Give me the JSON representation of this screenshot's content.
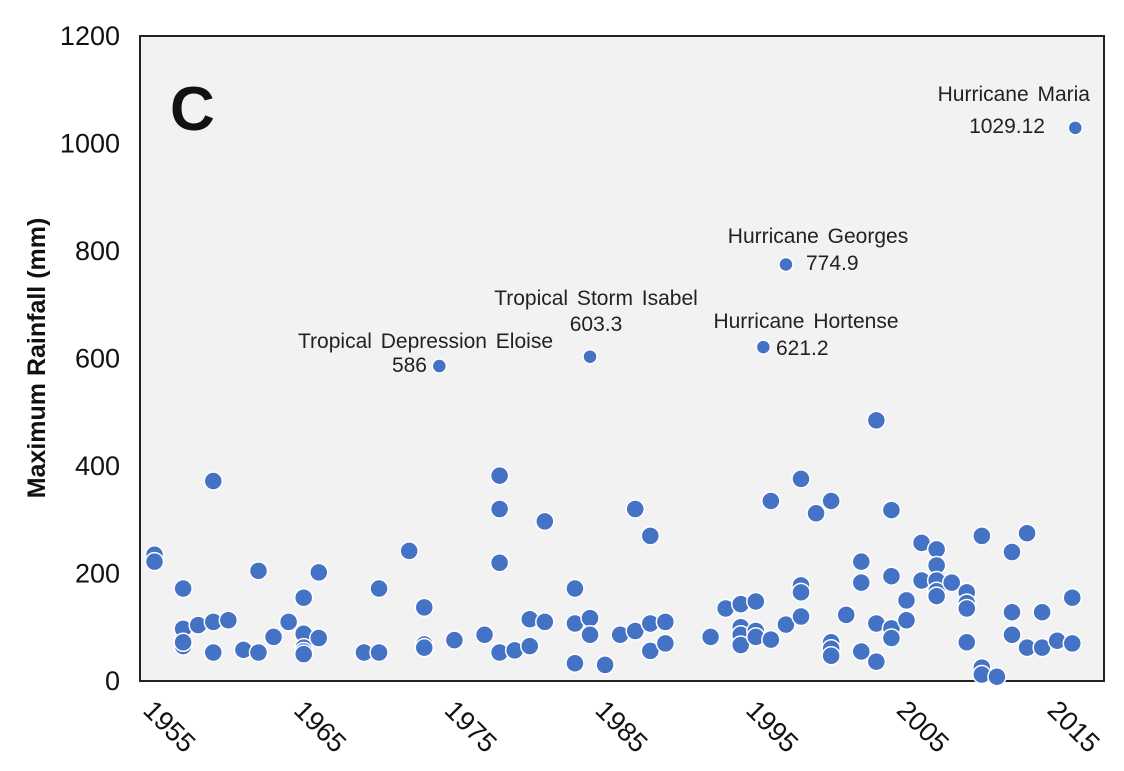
{
  "chart_data": {
    "type": "scatter",
    "title": "",
    "panel_label": "C",
    "xlabel": "",
    "ylabel": "Maximum  Rainfall (mm)",
    "xlim": [
      1954.2,
      2017.8
    ],
    "ylim": [
      0,
      1200
    ],
    "x_ticks": [
      1955,
      1965,
      1975,
      1985,
      1995,
      2005,
      2015
    ],
    "y_ticks": [
      0,
      200,
      400,
      600,
      800,
      1000,
      1200
    ],
    "grid": false,
    "legend": null,
    "series_color": "#4472c4",
    "plot_background": "#f2f2f2",
    "points": [
      {
        "x": 1955.1,
        "y": 235
      },
      {
        "x": 1955.1,
        "y": 222
      },
      {
        "x": 1957,
        "y": 172
      },
      {
        "x": 1957,
        "y": 97
      },
      {
        "x": 1957,
        "y": 65
      },
      {
        "x": 1957,
        "y": 72
      },
      {
        "x": 1958,
        "y": 104
      },
      {
        "x": 1959,
        "y": 110
      },
      {
        "x": 1959,
        "y": 372
      },
      {
        "x": 1959,
        "y": 53
      },
      {
        "x": 1960,
        "y": 113
      },
      {
        "x": 1961,
        "y": 58
      },
      {
        "x": 1962,
        "y": 53
      },
      {
        "x": 1962,
        "y": 205
      },
      {
        "x": 1963,
        "y": 82
      },
      {
        "x": 1964,
        "y": 110
      },
      {
        "x": 1965,
        "y": 155
      },
      {
        "x": 1965,
        "y": 88
      },
      {
        "x": 1965,
        "y": 62
      },
      {
        "x": 1965,
        "y": 55
      },
      {
        "x": 1965,
        "y": 50
      },
      {
        "x": 1966,
        "y": 80
      },
      {
        "x": 1966,
        "y": 202
      },
      {
        "x": 1969,
        "y": 53
      },
      {
        "x": 1970,
        "y": 53
      },
      {
        "x": 1970,
        "y": 172
      },
      {
        "x": 1972,
        "y": 242
      },
      {
        "x": 1973,
        "y": 137
      },
      {
        "x": 1973,
        "y": 68
      },
      {
        "x": 1973,
        "y": 62
      },
      {
        "x": 1974,
        "y": 586,
        "label": "Tropical  Depression  Eloise",
        "value_label": "586"
      },
      {
        "x": 1975,
        "y": 76
      },
      {
        "x": 1977,
        "y": 86
      },
      {
        "x": 1978,
        "y": 382
      },
      {
        "x": 1978,
        "y": 320
      },
      {
        "x": 1978,
        "y": 220
      },
      {
        "x": 1978,
        "y": 53
      },
      {
        "x": 1979,
        "y": 57
      },
      {
        "x": 1980,
        "y": 115
      },
      {
        "x": 1980,
        "y": 65
      },
      {
        "x": 1981,
        "y": 297
      },
      {
        "x": 1981,
        "y": 110
      },
      {
        "x": 1983,
        "y": 172
      },
      {
        "x": 1983,
        "y": 107
      },
      {
        "x": 1983,
        "y": 33
      },
      {
        "x": 1984,
        "y": 603.3,
        "label": "Tropical  Storm Isabel",
        "value_label": "603.3"
      },
      {
        "x": 1984,
        "y": 117
      },
      {
        "x": 1984,
        "y": 86
      },
      {
        "x": 1985,
        "y": 30
      },
      {
        "x": 1986,
        "y": 86
      },
      {
        "x": 1987,
        "y": 320
      },
      {
        "x": 1987,
        "y": 93
      },
      {
        "x": 1988,
        "y": 270
      },
      {
        "x": 1988,
        "y": 107
      },
      {
        "x": 1988,
        "y": 56
      },
      {
        "x": 1989,
        "y": 110
      },
      {
        "x": 1989,
        "y": 70
      },
      {
        "x": 1992,
        "y": 82
      },
      {
        "x": 1993,
        "y": 135
      },
      {
        "x": 1994,
        "y": 143
      },
      {
        "x": 1994,
        "y": 100
      },
      {
        "x": 1994,
        "y": 86
      },
      {
        "x": 1994,
        "y": 67
      },
      {
        "x": 1995,
        "y": 148
      },
      {
        "x": 1995,
        "y": 93
      },
      {
        "x": 1995,
        "y": 82
      },
      {
        "x": 1995.5,
        "y": 621.2,
        "label": "Hurricane  Hortense",
        "value_label": "621.2"
      },
      {
        "x": 1996,
        "y": 335
      },
      {
        "x": 1996,
        "y": 77
      },
      {
        "x": 1997,
        "y": 774.9,
        "label": "Hurricane  Georges",
        "value_label": "774.9"
      },
      {
        "x": 1997,
        "y": 105
      },
      {
        "x": 1998,
        "y": 376
      },
      {
        "x": 1998,
        "y": 178
      },
      {
        "x": 1998,
        "y": 165
      },
      {
        "x": 1998,
        "y": 120
      },
      {
        "x": 1999,
        "y": 312
      },
      {
        "x": 2000,
        "y": 335
      },
      {
        "x": 2000,
        "y": 72
      },
      {
        "x": 2000,
        "y": 60
      },
      {
        "x": 2000,
        "y": 47
      },
      {
        "x": 2001,
        "y": 123
      },
      {
        "x": 2002,
        "y": 222
      },
      {
        "x": 2002,
        "y": 183
      },
      {
        "x": 2002,
        "y": 55
      },
      {
        "x": 2003,
        "y": 485
      },
      {
        "x": 2003,
        "y": 107
      },
      {
        "x": 2003,
        "y": 36
      },
      {
        "x": 2004,
        "y": 318
      },
      {
        "x": 2004,
        "y": 195
      },
      {
        "x": 2004,
        "y": 98
      },
      {
        "x": 2004,
        "y": 80
      },
      {
        "x": 2005,
        "y": 150
      },
      {
        "x": 2005,
        "y": 113
      },
      {
        "x": 2006,
        "y": 257
      },
      {
        "x": 2006,
        "y": 187
      },
      {
        "x": 2007,
        "y": 245
      },
      {
        "x": 2007,
        "y": 215
      },
      {
        "x": 2007,
        "y": 187
      },
      {
        "x": 2007,
        "y": 167
      },
      {
        "x": 2007,
        "y": 158
      },
      {
        "x": 2008,
        "y": 183
      },
      {
        "x": 2009,
        "y": 165
      },
      {
        "x": 2009,
        "y": 145
      },
      {
        "x": 2009,
        "y": 135
      },
      {
        "x": 2009,
        "y": 72
      },
      {
        "x": 2010,
        "y": 270
      },
      {
        "x": 2010,
        "y": 25
      },
      {
        "x": 2010,
        "y": 12
      },
      {
        "x": 2011,
        "y": 8
      },
      {
        "x": 2012,
        "y": 240
      },
      {
        "x": 2012,
        "y": 128
      },
      {
        "x": 2012,
        "y": 86
      },
      {
        "x": 2013,
        "y": 275
      },
      {
        "x": 2013,
        "y": 62
      },
      {
        "x": 2014,
        "y": 128
      },
      {
        "x": 2014,
        "y": 62
      },
      {
        "x": 2015,
        "y": 75
      },
      {
        "x": 2016,
        "y": 155
      },
      {
        "x": 2016,
        "y": 70
      },
      {
        "x": 2016.2,
        "y": 1029.12,
        "label": "Hurricane  Maria",
        "value_label": "1029.12"
      }
    ]
  }
}
